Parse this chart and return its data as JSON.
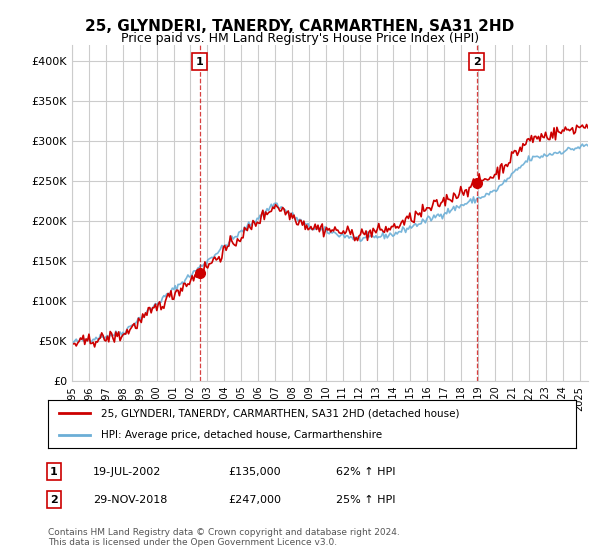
{
  "title": "25, GLYNDERI, TANERDY, CARMARTHEN, SA31 2HD",
  "subtitle": "Price paid vs. HM Land Registry's House Price Index (HPI)",
  "ylabel_ticks": [
    "£0",
    "£50K",
    "£100K",
    "£150K",
    "£200K",
    "£250K",
    "£300K",
    "£350K",
    "£400K"
  ],
  "ytick_values": [
    0,
    50000,
    100000,
    150000,
    200000,
    250000,
    300000,
    350000,
    400000
  ],
  "ylim": [
    0,
    420000
  ],
  "xlim_start": 1995.0,
  "xlim_end": 2025.5,
  "sale1_date": 2002.54,
  "sale1_price": 135000,
  "sale1_label": "1",
  "sale2_date": 2018.92,
  "sale2_price": 247000,
  "sale2_label": "2",
  "hpi_color": "#6baed6",
  "price_color": "#cc0000",
  "vline_color": "#cc0000",
  "grid_color": "#cccccc",
  "bg_color": "#ffffff",
  "legend_line1": "25, GLYNDERI, TANERDY, CARMARTHEN, SA31 2HD (detached house)",
  "legend_line2": "HPI: Average price, detached house, Carmarthenshire",
  "table_row1": [
    "1",
    "19-JUL-2002",
    "£135,000",
    "62% ↑ HPI"
  ],
  "table_row2": [
    "2",
    "29-NOV-2018",
    "£247,000",
    "25% ↑ HPI"
  ],
  "footnote": "Contains HM Land Registry data © Crown copyright and database right 2024.\nThis data is licensed under the Open Government Licence v3.0.",
  "xtick_years": [
    1995,
    1996,
    1997,
    1998,
    1999,
    2000,
    2001,
    2002,
    2003,
    2004,
    2005,
    2006,
    2007,
    2008,
    2009,
    2010,
    2011,
    2012,
    2013,
    2014,
    2015,
    2016,
    2017,
    2018,
    2019,
    2020,
    2021,
    2022,
    2023,
    2024,
    2025
  ],
  "n_points": 366
}
